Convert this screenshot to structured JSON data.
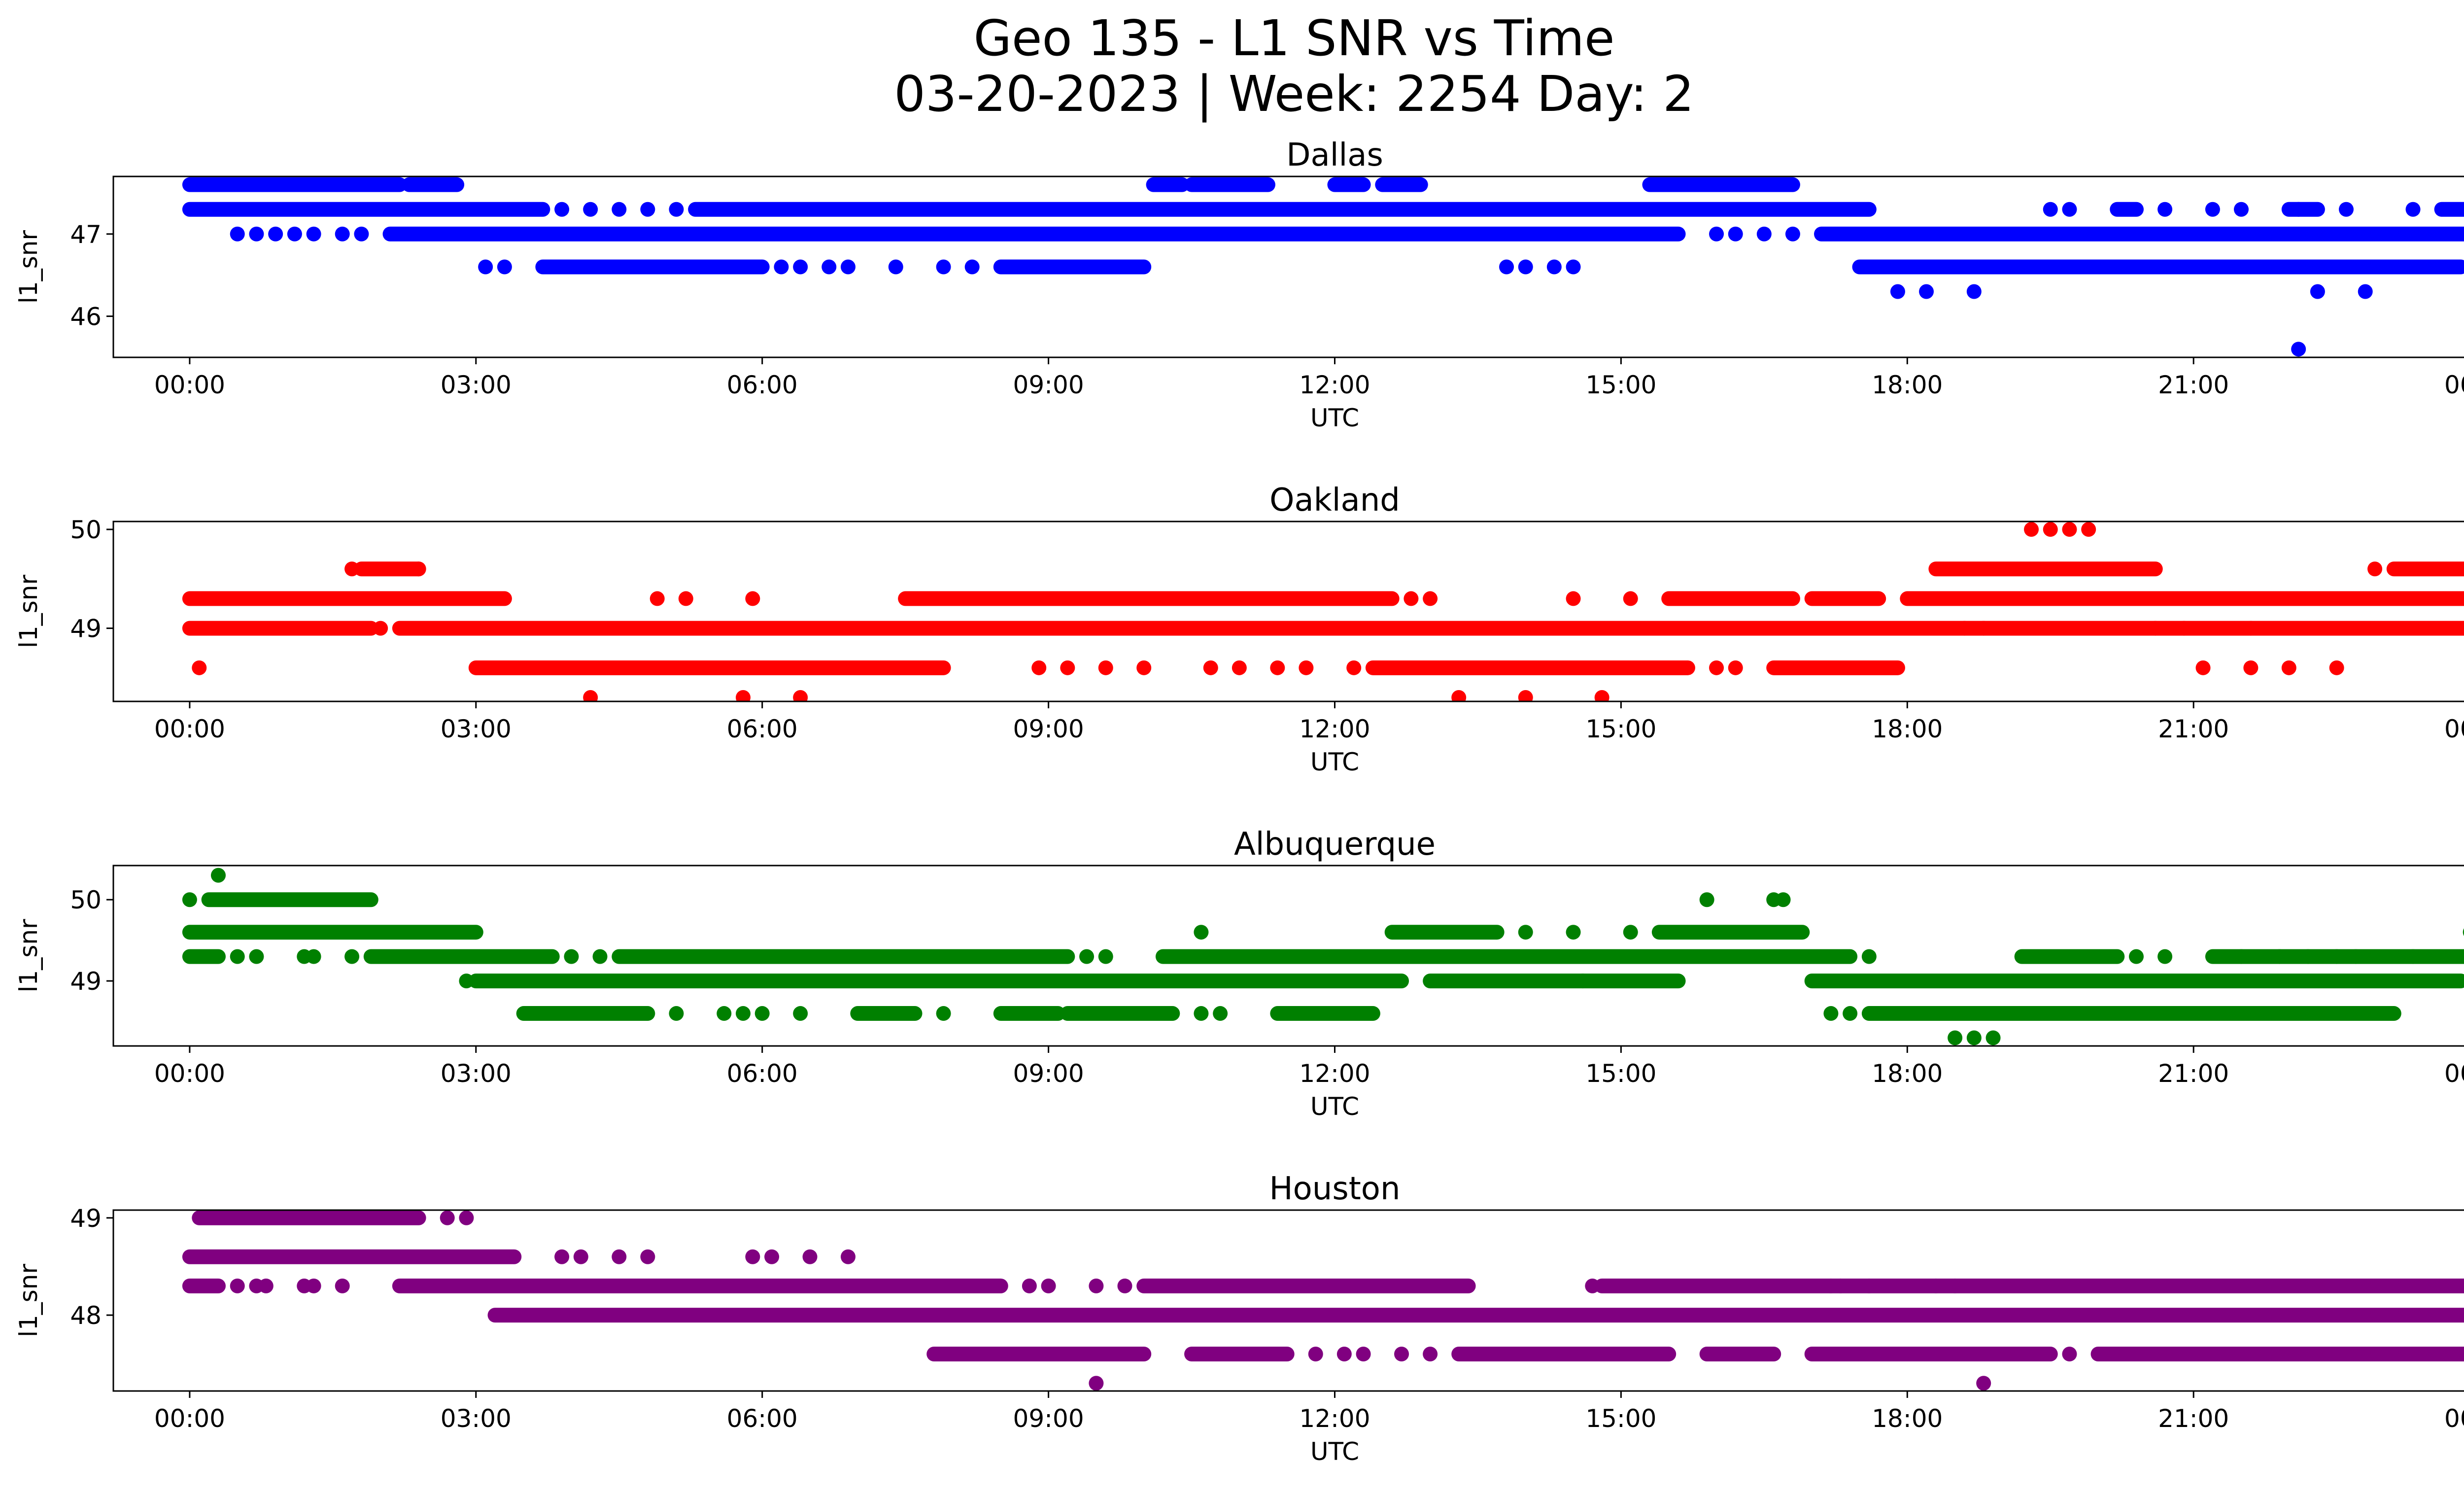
{
  "figure": {
    "title_line1": "Geo 135 - L1 SNR vs Time",
    "title_line2": "03-20-2023 | Week: 2254 Day: 2"
  },
  "chart_data": [
    {
      "type": "scatter",
      "title": "Dallas",
      "xlabel": "UTC",
      "ylabel": "l1_snr",
      "color": "#0000ff",
      "xlim": [
        -0.8,
        24.8
      ],
      "ylim": [
        45.5,
        47.7
      ],
      "xticks": [
        "00:00",
        "03:00",
        "06:00",
        "09:00",
        "12:00",
        "15:00",
        "18:00",
        "21:00",
        "00:00"
      ],
      "yticks": [
        46,
        47
      ],
      "bands": [
        {
          "y": 47.6,
          "segments": [
            [
              0.0,
              2.2
            ],
            [
              2.3,
              2.8
            ],
            [
              10.1,
              10.4
            ],
            [
              10.5,
              11.3
            ],
            [
              12.0,
              12.3
            ],
            [
              12.5,
              12.9
            ],
            [
              15.3,
              16.8
            ]
          ]
        },
        {
          "y": 47.3,
          "segments": [
            [
              0.0,
              3.7
            ],
            [
              5.3,
              17.6
            ],
            [
              20.2,
              20.4
            ],
            [
              22.0,
              22.3
            ],
            [
              23.6,
              24.0
            ]
          ]
        },
        {
          "y": 47.0,
          "segments": [
            [
              2.1,
              15.6
            ],
            [
              17.1,
              24.0
            ]
          ]
        },
        {
          "y": 46.6,
          "segments": [
            [
              3.7,
              6.0
            ],
            [
              8.5,
              10.0
            ],
            [
              17.5,
              23.8
            ]
          ]
        }
      ],
      "points": [
        [
          3.9,
          47.3
        ],
        [
          4.2,
          47.3
        ],
        [
          4.5,
          47.3
        ],
        [
          4.8,
          47.3
        ],
        [
          5.1,
          47.3
        ],
        [
          19.5,
          47.3
        ],
        [
          19.7,
          47.3
        ],
        [
          20.7,
          47.3
        ],
        [
          21.2,
          47.3
        ],
        [
          21.5,
          47.3
        ],
        [
          22.1,
          47.3
        ],
        [
          22.6,
          47.3
        ],
        [
          23.3,
          47.3
        ],
        [
          0.5,
          47.0
        ],
        [
          0.7,
          47.0
        ],
        [
          0.9,
          47.0
        ],
        [
          1.1,
          47.0
        ],
        [
          1.3,
          47.0
        ],
        [
          1.6,
          47.0
        ],
        [
          1.8,
          47.0
        ],
        [
          16.0,
          47.0
        ],
        [
          16.2,
          47.0
        ],
        [
          16.5,
          47.0
        ],
        [
          16.8,
          47.0
        ],
        [
          3.1,
          46.6
        ],
        [
          3.3,
          46.6
        ],
        [
          6.2,
          46.6
        ],
        [
          6.4,
          46.6
        ],
        [
          6.7,
          46.6
        ],
        [
          6.9,
          46.6
        ],
        [
          7.4,
          46.6
        ],
        [
          7.9,
          46.6
        ],
        [
          8.2,
          46.6
        ],
        [
          13.8,
          46.6
        ],
        [
          14.0,
          46.6
        ],
        [
          14.3,
          46.6
        ],
        [
          14.5,
          46.6
        ],
        [
          17.9,
          46.3
        ],
        [
          18.2,
          46.3
        ],
        [
          18.7,
          46.3
        ],
        [
          22.3,
          46.3
        ],
        [
          22.8,
          46.3
        ],
        [
          22.1,
          45.6
        ]
      ]
    },
    {
      "type": "scatter",
      "title": "Oakland",
      "xlabel": "UTC",
      "ylabel": "l1_snr",
      "color": "#ff0000",
      "xlim": [
        -0.8,
        24.8
      ],
      "ylim": [
        48.26,
        50.08
      ],
      "xticks": [
        "00:00",
        "03:00",
        "06:00",
        "09:00",
        "12:00",
        "15:00",
        "18:00",
        "21:00",
        "00:00"
      ],
      "yticks": [
        49,
        50
      ],
      "bands": [
        {
          "y": 49.6,
          "segments": [
            [
              1.8,
              2.4
            ],
            [
              18.3,
              20.6
            ],
            [
              23.1,
              23.9
            ]
          ]
        },
        {
          "y": 49.3,
          "segments": [
            [
              0.0,
              3.3
            ],
            [
              7.5,
              12.6
            ],
            [
              15.5,
              16.8
            ],
            [
              17.0,
              17.7
            ],
            [
              18.0,
              24.0
            ]
          ]
        },
        {
          "y": 49.0,
          "segments": [
            [
              0.0,
              1.9
            ],
            [
              2.2,
              24.0
            ]
          ]
        },
        {
          "y": 48.6,
          "segments": [
            [
              3.0,
              7.9
            ],
            [
              12.4,
              15.7
            ],
            [
              16.6,
              17.9
            ]
          ]
        }
      ],
      "points": [
        [
          1.7,
          49.6
        ],
        [
          2.4,
          49.6
        ],
        [
          22.9,
          49.6
        ],
        [
          4.9,
          49.3
        ],
        [
          5.2,
          49.3
        ],
        [
          5.9,
          49.3
        ],
        [
          12.8,
          49.3
        ],
        [
          13.0,
          49.3
        ],
        [
          14.5,
          49.3
        ],
        [
          15.1,
          49.3
        ],
        [
          2.0,
          49.0
        ],
        [
          18.6,
          49.0
        ],
        [
          18.8,
          49.0
        ],
        [
          20.6,
          49.0
        ],
        [
          20.9,
          49.0
        ],
        [
          21.6,
          49.0
        ],
        [
          0.1,
          48.6
        ],
        [
          8.9,
          48.6
        ],
        [
          9.2,
          48.6
        ],
        [
          9.6,
          48.6
        ],
        [
          10.0,
          48.6
        ],
        [
          10.7,
          48.6
        ],
        [
          11.0,
          48.6
        ],
        [
          11.4,
          48.6
        ],
        [
          11.7,
          48.6
        ],
        [
          12.2,
          48.6
        ],
        [
          16.0,
          48.6
        ],
        [
          16.2,
          48.6
        ],
        [
          21.1,
          48.6
        ],
        [
          21.6,
          48.6
        ],
        [
          22.0,
          48.6
        ],
        [
          22.5,
          48.6
        ],
        [
          4.2,
          48.3
        ],
        [
          5.8,
          48.3
        ],
        [
          6.4,
          48.3
        ],
        [
          13.3,
          48.3
        ],
        [
          14.0,
          48.3
        ],
        [
          14.8,
          48.3
        ],
        [
          19.3,
          50.0
        ],
        [
          19.5,
          50.0
        ],
        [
          19.7,
          50.0
        ],
        [
          19.9,
          50.0
        ]
      ]
    },
    {
      "type": "scatter",
      "title": "Albuquerque",
      "xlabel": "UTC",
      "ylabel": "l1_snr",
      "color": "#008000",
      "xlim": [
        -0.8,
        24.8
      ],
      "ylim": [
        48.2,
        50.42
      ],
      "xticks": [
        "00:00",
        "03:00",
        "06:00",
        "09:00",
        "12:00",
        "15:00",
        "18:00",
        "21:00",
        "00:00"
      ],
      "yticks": [
        49,
        50
      ],
      "bands": [
        {
          "y": 50.0,
          "segments": [
            [
              0.2,
              1.9
            ]
          ]
        },
        {
          "y": 49.6,
          "segments": [
            [
              0.0,
              3.0
            ],
            [
              12.6,
              13.7
            ],
            [
              15.4,
              16.9
            ]
          ]
        },
        {
          "y": 49.3,
          "segments": [
            [
              0.0,
              0.3
            ],
            [
              1.9,
              3.8
            ],
            [
              4.5,
              9.2
            ],
            [
              10.2,
              17.4
            ],
            [
              19.2,
              20.2
            ],
            [
              21.2,
              23.3
            ],
            [
              23.3,
              24.0
            ]
          ]
        },
        {
          "y": 49.0,
          "segments": [
            [
              3.0,
              12.7
            ],
            [
              13.0,
              14.6
            ],
            [
              14.6,
              15.6
            ],
            [
              17.0,
              23.8
            ]
          ]
        },
        {
          "y": 48.6,
          "segments": [
            [
              3.5,
              4.8
            ],
            [
              7.0,
              7.6
            ],
            [
              8.5,
              9.1
            ],
            [
              9.2,
              10.3
            ],
            [
              11.4,
              12.4
            ],
            [
              17.6,
              18.3
            ],
            [
              18.3,
              20.6
            ],
            [
              20.6,
              23.1
            ]
          ]
        }
      ],
      "points": [
        [
          0.0,
          50.0
        ],
        [
          0.3,
          50.3
        ],
        [
          10.6,
          49.6
        ],
        [
          14.0,
          49.6
        ],
        [
          14.5,
          49.6
        ],
        [
          15.1,
          49.6
        ],
        [
          15.9,
          50.0
        ],
        [
          16.6,
          50.0
        ],
        [
          16.7,
          50.0
        ],
        [
          23.9,
          49.6
        ],
        [
          0.5,
          49.3
        ],
        [
          0.7,
          49.3
        ],
        [
          1.2,
          49.3
        ],
        [
          1.3,
          49.3
        ],
        [
          1.7,
          49.3
        ],
        [
          4.0,
          49.3
        ],
        [
          4.3,
          49.3
        ],
        [
          9.4,
          49.3
        ],
        [
          9.6,
          49.3
        ],
        [
          17.6,
          49.3
        ],
        [
          20.4,
          49.3
        ],
        [
          20.7,
          49.3
        ],
        [
          21.5,
          49.3
        ],
        [
          21.9,
          49.3
        ],
        [
          22.2,
          49.3
        ],
        [
          22.5,
          49.3
        ],
        [
          22.7,
          49.3
        ],
        [
          2.9,
          49.0
        ],
        [
          5.1,
          48.6
        ],
        [
          5.6,
          48.6
        ],
        [
          5.8,
          48.6
        ],
        [
          6.0,
          48.6
        ],
        [
          6.4,
          48.6
        ],
        [
          7.9,
          48.6
        ],
        [
          10.6,
          48.6
        ],
        [
          10.8,
          48.6
        ],
        [
          17.2,
          48.6
        ],
        [
          17.4,
          48.6
        ],
        [
          18.5,
          48.3
        ],
        [
          18.7,
          48.3
        ],
        [
          18.9,
          48.3
        ]
      ]
    },
    {
      "type": "scatter",
      "title": "Houston",
      "xlabel": "UTC",
      "ylabel": "l1_snr",
      "color": "#800080",
      "xlim": [
        -0.8,
        24.8
      ],
      "ylim": [
        47.22,
        49.08
      ],
      "xticks": [
        "00:00",
        "03:00",
        "06:00",
        "09:00",
        "12:00",
        "15:00",
        "18:00",
        "21:00",
        "00:00"
      ],
      "yticks": [
        48,
        49
      ],
      "bands": [
        {
          "y": 49.0,
          "segments": [
            [
              0.1,
              2.4
            ]
          ]
        },
        {
          "y": 48.6,
          "segments": [
            [
              0.0,
              3.4
            ]
          ]
        },
        {
          "y": 48.3,
          "segments": [
            [
              0.0,
              0.3
            ],
            [
              2.2,
              8.5
            ],
            [
              10.0,
              13.4
            ],
            [
              14.8,
              17.2
            ],
            [
              17.2,
              24.0
            ]
          ]
        },
        {
          "y": 48.0,
          "segments": [
            [
              3.2,
              24.0
            ]
          ]
        },
        {
          "y": 47.6,
          "segments": [
            [
              7.8,
              10.0
            ],
            [
              10.5,
              11.5
            ],
            [
              13.3,
              15.5
            ],
            [
              15.9,
              16.6
            ],
            [
              17.0,
              19.5
            ],
            [
              20.0,
              23.9
            ]
          ]
        }
      ],
      "points": [
        [
          2.7,
          49.0
        ],
        [
          2.9,
          49.0
        ],
        [
          3.9,
          48.6
        ],
        [
          4.1,
          48.6
        ],
        [
          4.5,
          48.6
        ],
        [
          4.8,
          48.6
        ],
        [
          5.9,
          48.6
        ],
        [
          6.1,
          48.6
        ],
        [
          6.5,
          48.6
        ],
        [
          6.9,
          48.6
        ],
        [
          0.5,
          48.3
        ],
        [
          0.7,
          48.3
        ],
        [
          0.8,
          48.3
        ],
        [
          1.2,
          48.3
        ],
        [
          1.3,
          48.3
        ],
        [
          1.6,
          48.3
        ],
        [
          8.8,
          48.3
        ],
        [
          9.0,
          48.3
        ],
        [
          9.5,
          48.3
        ],
        [
          9.8,
          48.3
        ],
        [
          14.7,
          48.3
        ],
        [
          17.3,
          48.3
        ],
        [
          17.6,
          48.3
        ],
        [
          18.3,
          48.3
        ],
        [
          18.5,
          48.3
        ],
        [
          11.8,
          47.6
        ],
        [
          12.1,
          47.6
        ],
        [
          12.3,
          47.6
        ],
        [
          12.7,
          47.6
        ],
        [
          13.0,
          47.6
        ],
        [
          16.2,
          47.6
        ],
        [
          16.4,
          47.6
        ],
        [
          19.7,
          47.6
        ],
        [
          20.1,
          47.6
        ],
        [
          22.1,
          47.6
        ],
        [
          22.3,
          47.6
        ],
        [
          9.5,
          47.3
        ],
        [
          18.8,
          47.3
        ]
      ]
    }
  ]
}
